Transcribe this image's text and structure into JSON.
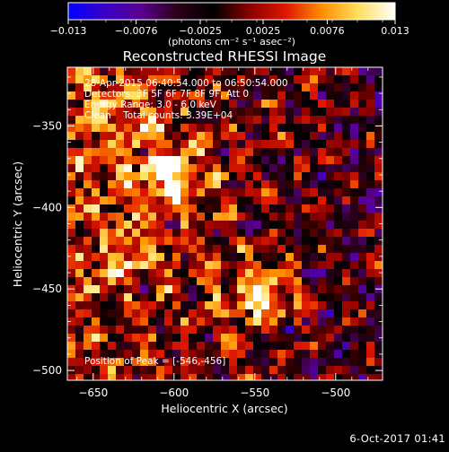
{
  "window_title": "Reconstructed RHESSI Image",
  "colorbar": {
    "ticks": [
      "-0.013",
      "-0.0076",
      "-0.0025",
      "0.0025",
      "0.0076",
      "0.013"
    ],
    "unit_label": "(photons cm⁻² s⁻¹ asec⁻²)",
    "range": [
      -0.013,
      0.013
    ],
    "colormap": [
      "#0000ff",
      "#3a00c8",
      "#5a0090",
      "#2a0018",
      "#000000",
      "#8a0000",
      "#e01800",
      "#ff9000",
      "#ffe060",
      "#ffffff"
    ]
  },
  "chart_data": {
    "type": "heatmap",
    "title": "Reconstructed RHESSI Image",
    "xlabel": "Heliocentric X (arcsec)",
    "ylabel": "Heliocentric Y (arcsec)",
    "xlim": [
      -666,
      -471
    ],
    "ylim": [
      -506,
      -314
    ],
    "x_ticks": [
      -650,
      -600,
      -550,
      -500
    ],
    "x_tick_labels": [
      "−650",
      "−600",
      "−550",
      "−500"
    ],
    "y_ticks": [
      -350,
      -400,
      -450,
      -500
    ],
    "y_tick_labels": [
      "−350",
      "−400",
      "−450",
      "−500"
    ],
    "grid": false,
    "sources": [
      {
        "x": -546,
        "y": -456,
        "peak": 0.013
      },
      {
        "x": -603,
        "y": -381,
        "peak": 0.0115
      },
      {
        "x": -628,
        "y": -430,
        "peak": 0.006
      },
      {
        "x": -640,
        "y": -348,
        "peak": 0.005
      }
    ],
    "annotations": [
      "28-Apr-2015 06:40:54.000 to 06:50:54.000",
      "Detectors: 3F 5F 6F 7F 8F 9F, Att 0",
      "Energy Range: 3.0 - 6.0 keV",
      "Clean    Total counts: 3.39E+04",
      "Position of Peak = [-546,-456]"
    ]
  },
  "footer": {
    "date": "6-Oct-2017 01:41"
  }
}
